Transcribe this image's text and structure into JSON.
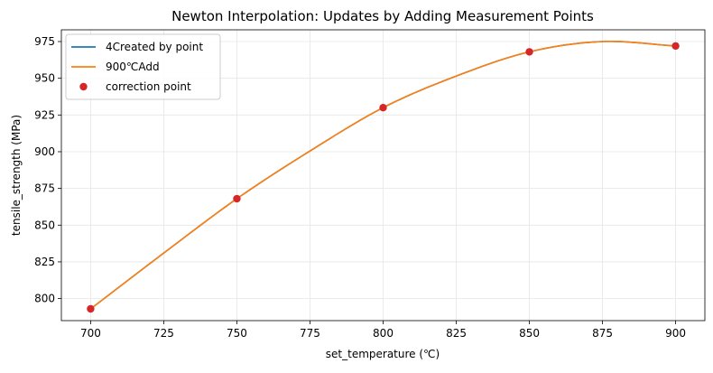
{
  "chart_data": {
    "type": "line",
    "title": "Newton Interpolation: Updates by Adding Measurement Points",
    "xlabel": "set_temperature (℃)",
    "ylabel": "tensile_strength (MPa)",
    "xlim": [
      690,
      910
    ],
    "ylim": [
      785,
      983
    ],
    "x_ticks": [
      700,
      725,
      750,
      775,
      800,
      825,
      850,
      875,
      900
    ],
    "y_ticks": [
      800,
      825,
      850,
      875,
      900,
      925,
      950,
      975
    ],
    "grid": true,
    "legend_position": "top-left",
    "series": [
      {
        "name": "4Created by point",
        "kind": "line",
        "color": "#1f77b4",
        "x": [
          700,
          725,
          750,
          775,
          800,
          825,
          850,
          875,
          900
        ],
        "y": [
          793,
          831,
          868,
          900.5,
          930,
          951.5,
          968,
          975,
          972
        ]
      },
      {
        "name": "900℃Add",
        "kind": "line",
        "color": "#ff7f0e",
        "x": [
          700,
          725,
          750,
          775,
          800,
          825,
          850,
          875,
          900
        ],
        "y": [
          793,
          831,
          868,
          900.5,
          930,
          951.5,
          968,
          975,
          972
        ]
      },
      {
        "name": "correction point",
        "kind": "scatter",
        "color": "#d62728",
        "x": [
          700,
          750,
          800,
          850,
          900
        ],
        "y": [
          793,
          868,
          930,
          968,
          972
        ]
      }
    ]
  }
}
